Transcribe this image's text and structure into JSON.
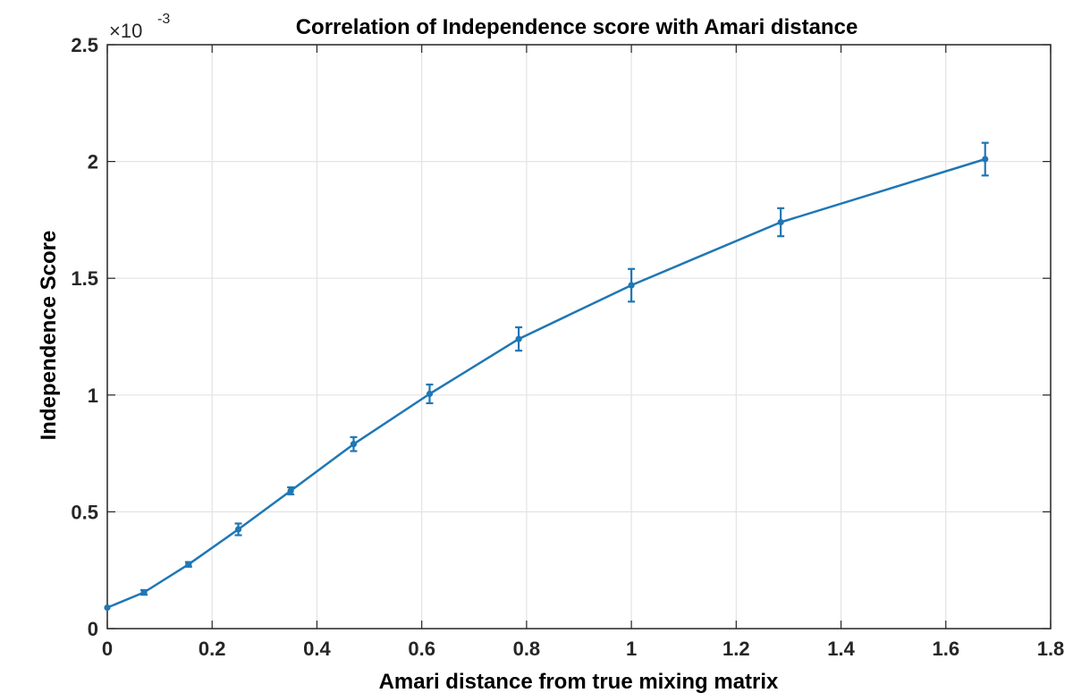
{
  "chart_data": {
    "type": "line",
    "title": "Correlation of Independence score with Amari distance",
    "xlabel": "Amari distance from true mixing matrix",
    "ylabel": "Independence Score",
    "y_multiplier": "×10",
    "y_exponent": "-3",
    "xlim": [
      0,
      1.8
    ],
    "ylim": [
      0,
      2.5
    ],
    "x_ticks": [
      "0",
      "0.2",
      "0.4",
      "0.6",
      "0.8",
      "1",
      "1.2",
      "1.4",
      "1.6",
      "1.8"
    ],
    "y_ticks": [
      "0",
      "0.5",
      "1",
      "1.5",
      "2",
      "2.5"
    ],
    "grid": true,
    "series_color": "#1f77b4",
    "series": [
      {
        "x": [
          0.0,
          0.07,
          0.155,
          0.25,
          0.35,
          0.47,
          0.615,
          0.785,
          1.0,
          1.285,
          1.675
        ],
        "y": [
          0.09,
          0.155,
          0.275,
          0.425,
          0.59,
          0.79,
          1.005,
          1.24,
          1.47,
          1.74,
          2.01
        ],
        "err": [
          0.0,
          0.01,
          0.01,
          0.025,
          0.015,
          0.03,
          0.04,
          0.05,
          0.07,
          0.06,
          0.07
        ]
      }
    ]
  }
}
